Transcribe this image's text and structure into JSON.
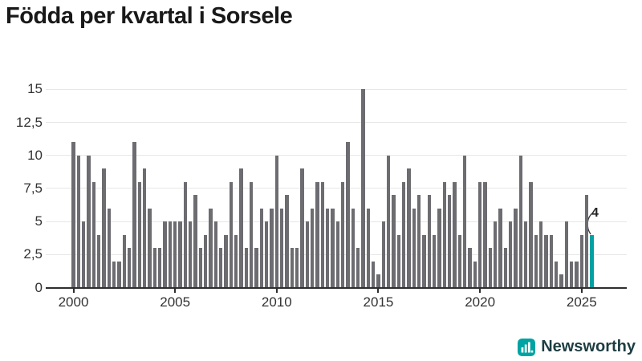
{
  "header": {
    "title": "Födda per kvartal i Sorsele"
  },
  "footer": {
    "brand": "Newsworthy",
    "logo_icon": "bar-chart-icon"
  },
  "annotation": {
    "last_value_label": "4"
  },
  "colors": {
    "bar": "#6c6c71",
    "accent": "#00a3a3",
    "grid": "#e7e7e7",
    "axis": "#2e2e2e",
    "tick_text": "#333333",
    "title_text": "#191919",
    "logo_text": "#1d3d42"
  },
  "chart_data": {
    "type": "bar",
    "title": "Födda per kvartal i Sorsele",
    "xlabel": "",
    "ylabel": "",
    "first_period": "2000-Q1",
    "last_period": "2025-Q3",
    "quarters_per_year": 4,
    "values": [
      11,
      10,
      5,
      10,
      8,
      4,
      9,
      6,
      2,
      2,
      4,
      3,
      11,
      8,
      9,
      6,
      3,
      3,
      5,
      5,
      5,
      5,
      8,
      5,
      7,
      3,
      4,
      6,
      5,
      3,
      4,
      8,
      4,
      9,
      3,
      8,
      3,
      6,
      5,
      6,
      10,
      6,
      7,
      3,
      3,
      9,
      5,
      6,
      8,
      8,
      6,
      6,
      5,
      8,
      11,
      6,
      3,
      15,
      6,
      2,
      1,
      5,
      10,
      7,
      4,
      8,
      9,
      6,
      7,
      4,
      7,
      4,
      6,
      8,
      7,
      8,
      4,
      10,
      3,
      2,
      8,
      8,
      3,
      5,
      6,
      3,
      5,
      6,
      10,
      5,
      8,
      4,
      5,
      4,
      4,
      2,
      1,
      5,
      2,
      2,
      4,
      7,
      4
    ],
    "values_by_year": {
      "2000": [
        11,
        10,
        5,
        10
      ],
      "2001": [
        8,
        4,
        9,
        6
      ],
      "2002": [
        2,
        2,
        4,
        3
      ],
      "2003": [
        11,
        8,
        9,
        6
      ],
      "2004": [
        3,
        3,
        5,
        5
      ],
      "2005": [
        5,
        5,
        8,
        5
      ],
      "2006": [
        7,
        3,
        4,
        6
      ],
      "2007": [
        5,
        3,
        4,
        8
      ],
      "2008": [
        4,
        9,
        3,
        8
      ],
      "2009": [
        3,
        6,
        5,
        6
      ],
      "2010": [
        10,
        6,
        7,
        3
      ],
      "2011": [
        3,
        9,
        5,
        6
      ],
      "2012": [
        8,
        8,
        6,
        6
      ],
      "2013": [
        5,
        8,
        11,
        6
      ],
      "2014": [
        3,
        15,
        6,
        2
      ],
      "2015": [
        1,
        5,
        10,
        7
      ],
      "2016": [
        4,
        8,
        9,
        6
      ],
      "2017": [
        7,
        4,
        7,
        4
      ],
      "2018": [
        6,
        8,
        7,
        8
      ],
      "2019": [
        4,
        10,
        3,
        2
      ],
      "2020": [
        8,
        8,
        3,
        5
      ],
      "2021": [
        6,
        3,
        5,
        6
      ],
      "2022": [
        10,
        5,
        8,
        4
      ],
      "2023": [
        5,
        4,
        4,
        2
      ],
      "2024": [
        1,
        5,
        2,
        2
      ],
      "2025": [
        4,
        7,
        4
      ]
    },
    "highlight": {
      "index": 102,
      "color": "#00a3a3",
      "label": "4",
      "period": "2025-Q3"
    },
    "x_ticks": [
      2000,
      2005,
      2010,
      2015,
      2020,
      2025
    ],
    "y_ticks": [
      {
        "value": 0,
        "label": "0"
      },
      {
        "value": 2.5,
        "label": "2,5"
      },
      {
        "value": 5,
        "label": "5"
      },
      {
        "value": 7.5,
        "label": "7,5"
      },
      {
        "value": 10,
        "label": "10"
      },
      {
        "value": 12.5,
        "label": "12,5"
      },
      {
        "value": 15,
        "label": "15"
      }
    ],
    "ylim": [
      0,
      15
    ],
    "grid": true,
    "legend": false
  }
}
